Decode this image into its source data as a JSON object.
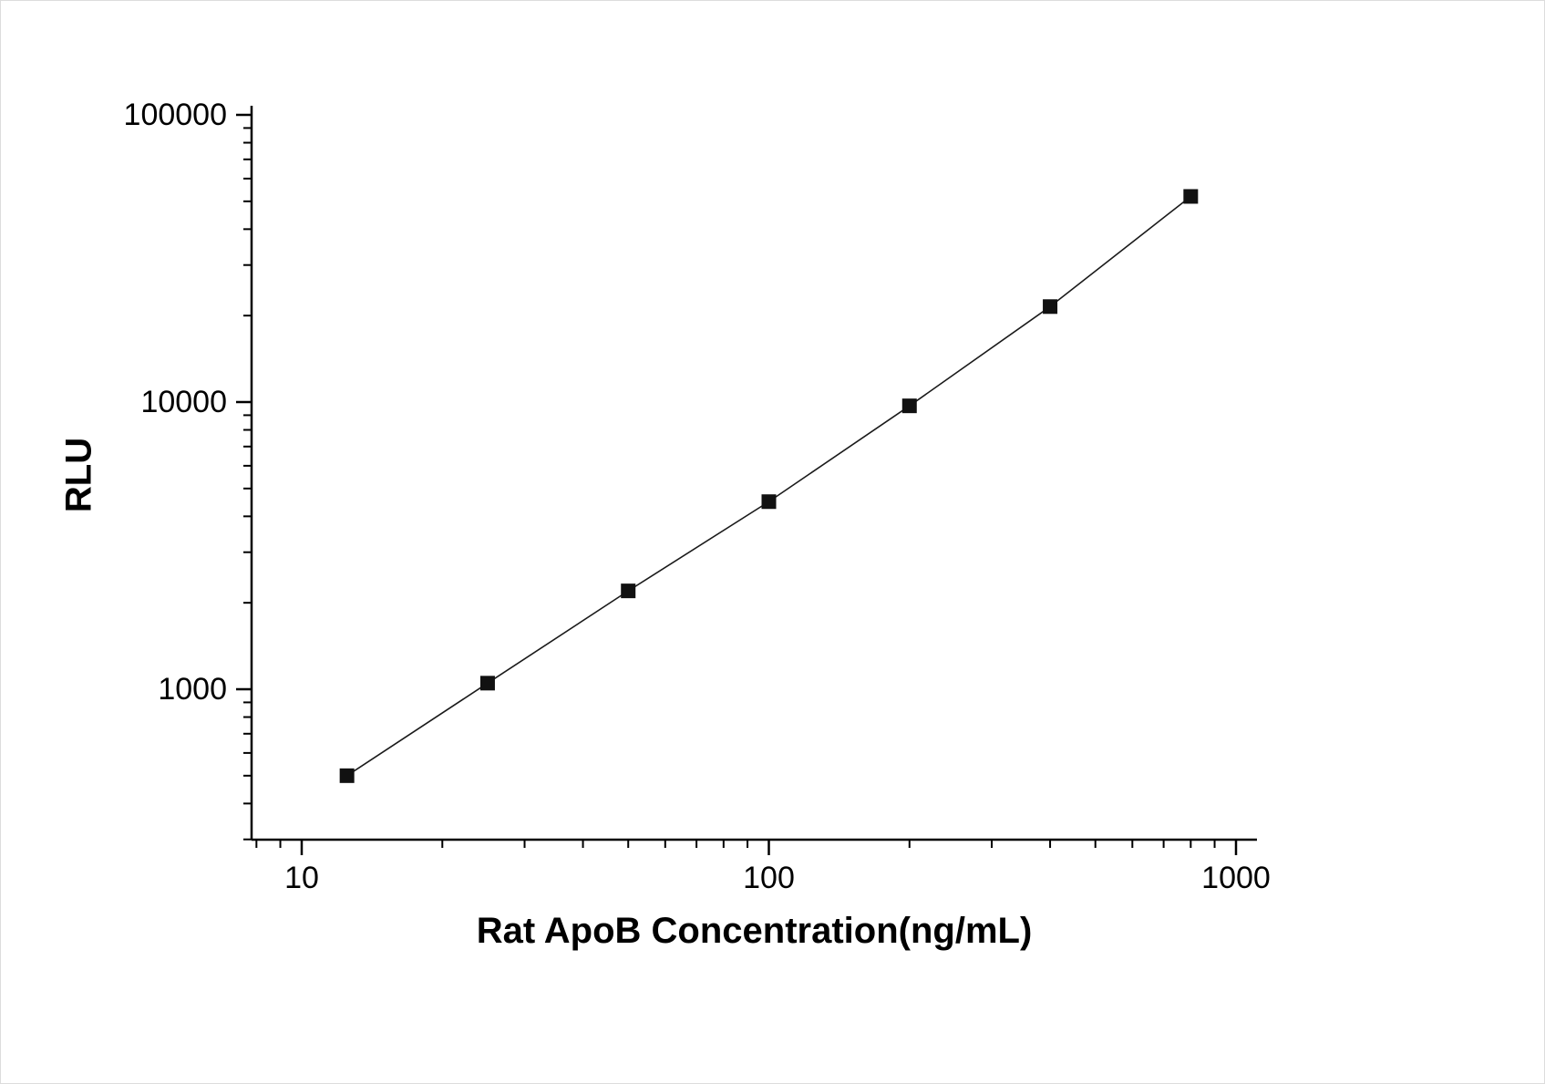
{
  "chart_data": {
    "type": "line",
    "series": [
      {
        "name": "standard-curve",
        "x": [
          12.5,
          25,
          50,
          100,
          200,
          400,
          800
        ],
        "y": [
          500,
          1050,
          2200,
          4500,
          9700,
          21500,
          52000
        ]
      }
    ],
    "title": "",
    "xlabel": "Rat ApoB Concentration(ng/mL)",
    "ylabel": "RLU",
    "x_scale": "log",
    "y_scale": "log",
    "x_major_ticks": [
      10,
      100,
      1000
    ],
    "y_major_ticks": [
      1000,
      10000,
      100000
    ],
    "x_tick_labels": [
      "10",
      "100",
      "1000"
    ],
    "y_tick_labels": [
      "1000",
      "10000",
      "100000"
    ],
    "xlim": [
      7.8,
      1110
    ],
    "ylim": [
      300,
      107000
    ],
    "grid": false,
    "legend_position": "none",
    "marker": "filled-square",
    "marker_color": "#111111",
    "line_color": "#1a1a1a",
    "axis_color": "#000000",
    "background_color": "#ffffff"
  }
}
